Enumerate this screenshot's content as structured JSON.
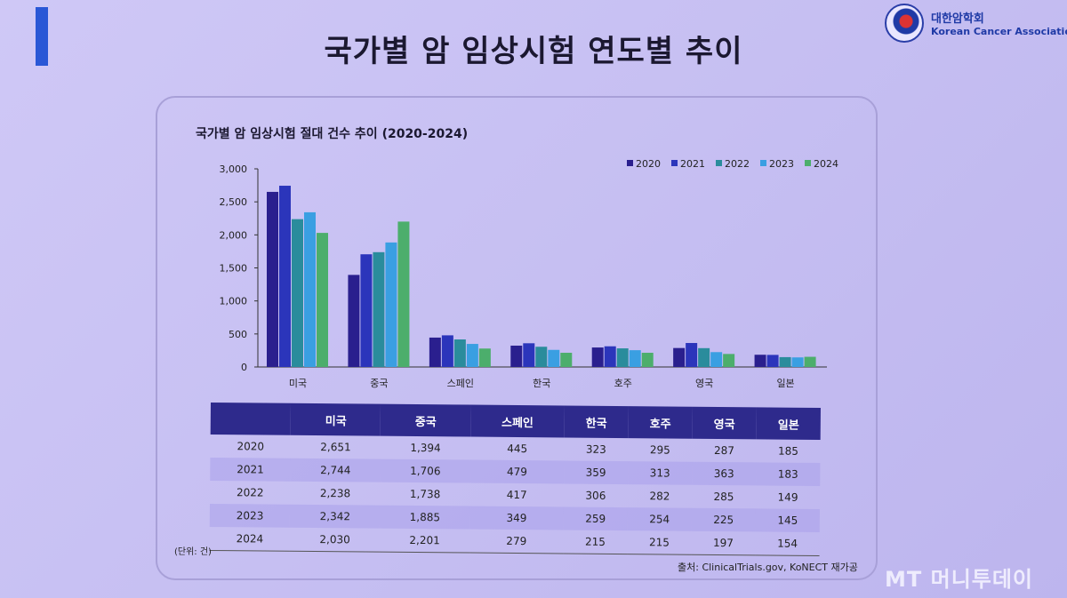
{
  "slide": {
    "title": "국가별 암 임상시험 연도별 추이",
    "logo_ko": "대한암학회",
    "logo_en": "Korean Cancer Association",
    "watermark": "MT 머니투데이"
  },
  "chart_data": {
    "type": "bar",
    "title": "국가별 암 임상시험 절대 건수 추이 (2020-2024)",
    "categories": [
      "미국",
      "중국",
      "스페인",
      "한국",
      "호주",
      "영국",
      "일본"
    ],
    "series": [
      {
        "name": "2020",
        "color": "#2a1f8e",
        "values": [
          2651,
          1394,
          445,
          323,
          295,
          287,
          185
        ]
      },
      {
        "name": "2021",
        "color": "#2b35bb",
        "values": [
          2744,
          1706,
          479,
          359,
          313,
          363,
          183
        ]
      },
      {
        "name": "2022",
        "color": "#2a8c9c",
        "values": [
          2238,
          1738,
          417,
          306,
          282,
          285,
          149
        ]
      },
      {
        "name": "2023",
        "color": "#3a9fe2",
        "values": [
          2342,
          1885,
          349,
          259,
          254,
          225,
          145
        ]
      },
      {
        "name": "2024",
        "color": "#4cae6c",
        "values": [
          2030,
          2201,
          279,
          215,
          215,
          197,
          154
        ]
      }
    ],
    "yticks": [
      "0",
      "500",
      "1,000",
      "1,500",
      "2,000",
      "2,500",
      "3,000"
    ],
    "ylim": [
      0,
      3000
    ],
    "legend": "top-right",
    "grid": false,
    "unit": "(단위: 건)",
    "source": "출처: ClinicalTrials.gov, KoNECT 재가공"
  },
  "table": {
    "headers": [
      "",
      "미국",
      "중국",
      "스페인",
      "한국",
      "호주",
      "영국",
      "일본"
    ],
    "rows": [
      [
        "2020",
        "2,651",
        "1,394",
        "445",
        "323",
        "295",
        "287",
        "185"
      ],
      [
        "2021",
        "2,744",
        "1,706",
        "479",
        "359",
        "313",
        "363",
        "183"
      ],
      [
        "2022",
        "2,238",
        "1,738",
        "417",
        "306",
        "282",
        "285",
        "149"
      ],
      [
        "2023",
        "2,342",
        "1,885",
        "349",
        "259",
        "254",
        "225",
        "145"
      ],
      [
        "2024",
        "2,030",
        "2,201",
        "279",
        "215",
        "215",
        "197",
        "154"
      ]
    ]
  }
}
